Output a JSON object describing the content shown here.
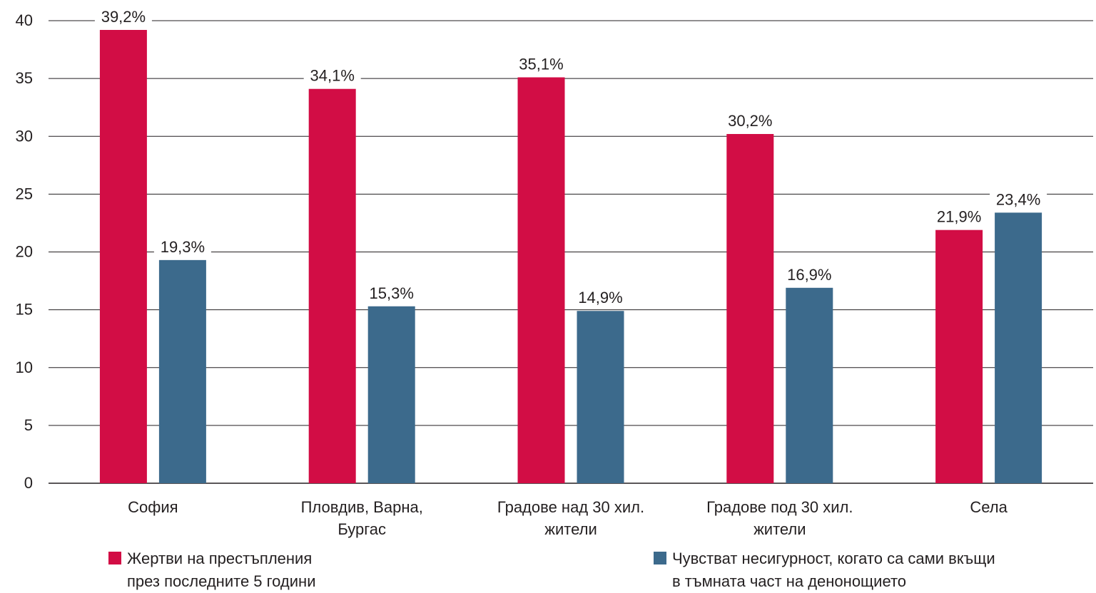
{
  "chart_data": {
    "type": "bar",
    "categories": [
      [
        "София"
      ],
      [
        "Пловдив, Варна,",
        "Бургас"
      ],
      [
        "Градове над 30 хил.",
        "жители"
      ],
      [
        "Градове под 30 хил.",
        "жители"
      ],
      [
        "Села"
      ]
    ],
    "series": [
      {
        "name": [
          "Жертви на престъпления",
          "през последните 5 години"
        ],
        "color": "#d20d45",
        "values": [
          39.2,
          34.1,
          35.1,
          30.2,
          21.9
        ],
        "labels": [
          "39,2%",
          "34,1%",
          "35,1%",
          "30,2%",
          "21,9%"
        ]
      },
      {
        "name": [
          "Чувстват несигурност, когато са сами вкъщи",
          "в тъмната част на денонощието"
        ],
        "color": "#3c6a8c",
        "values": [
          19.3,
          15.3,
          14.9,
          16.9,
          23.4
        ],
        "labels": [
          "19,3%",
          "15,3%",
          "14,9%",
          "16,9%",
          "23,4%"
        ]
      }
    ],
    "ylim": [
      0,
      40
    ],
    "yticks": [
      "0",
      "5",
      "10",
      "15",
      "20",
      "25",
      "30",
      "35",
      "40"
    ],
    "grid": true,
    "legend_position": "bottom"
  }
}
